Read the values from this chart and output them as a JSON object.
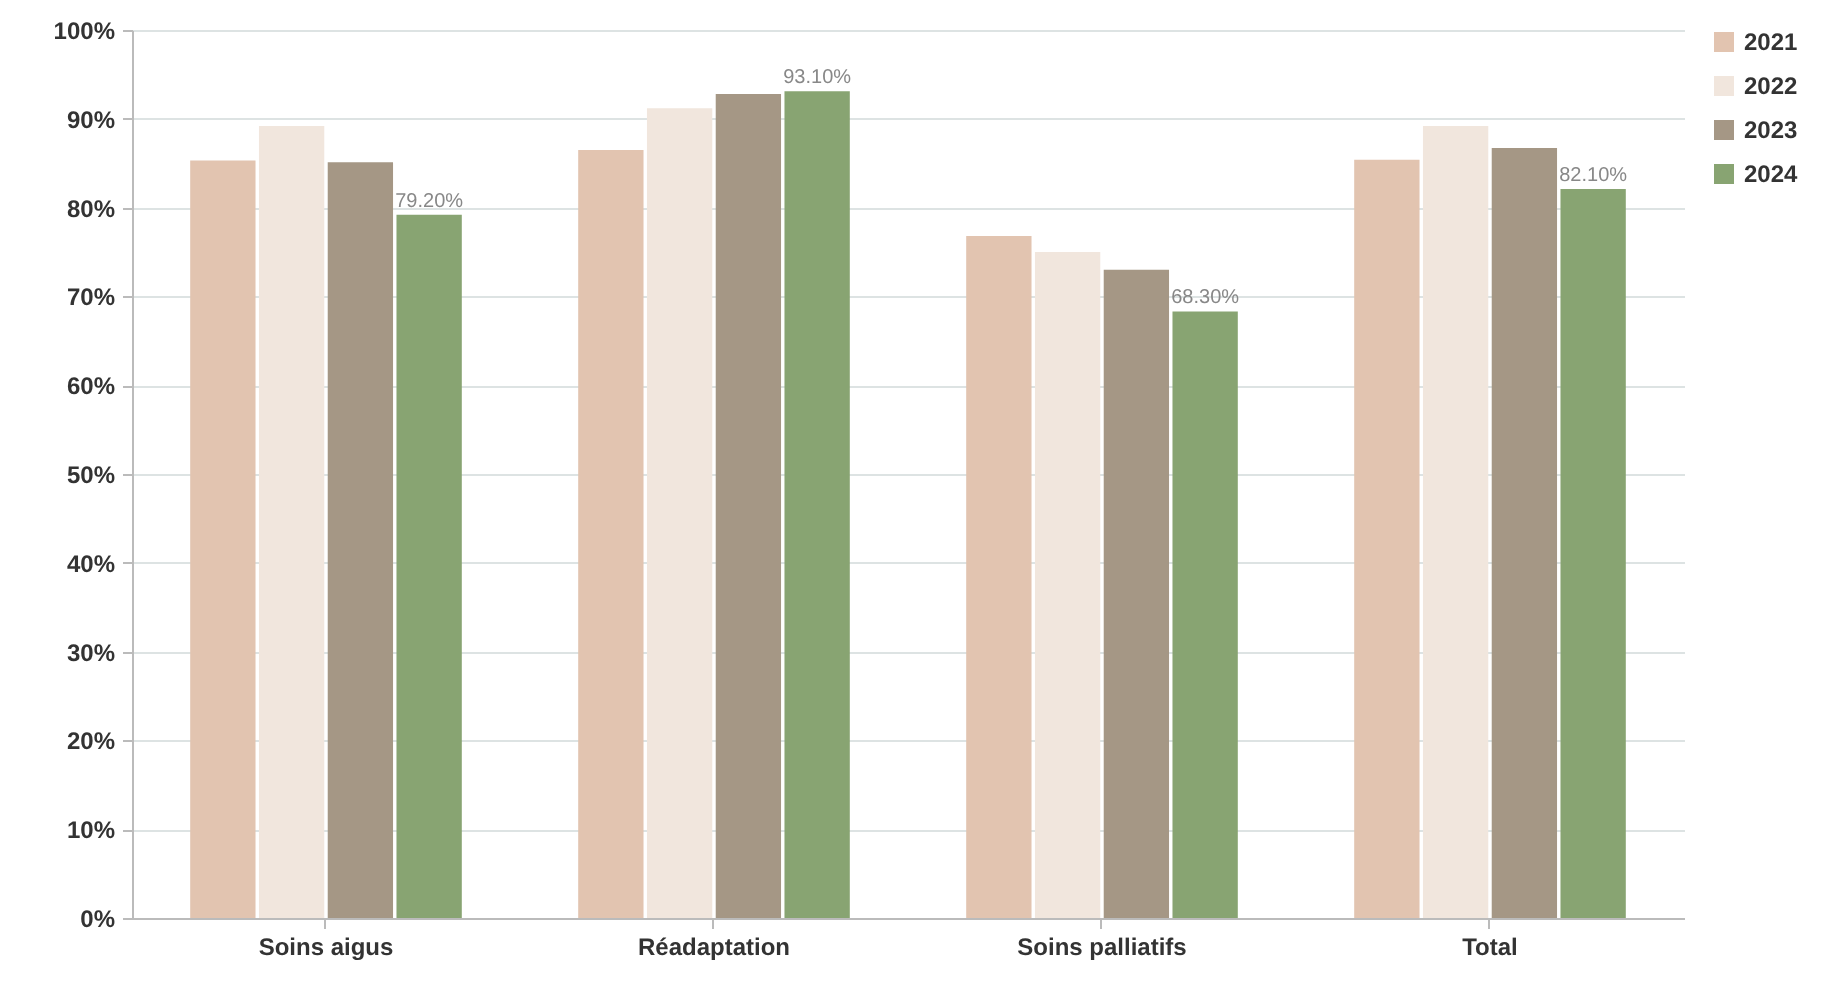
{
  "chart_data": {
    "type": "bar",
    "categories": [
      "Soins aigus",
      "Réadaptation",
      "Soins palliatifs",
      "Total"
    ],
    "series": [
      {
        "name": "2021",
        "color": "#e2c4b0",
        "values": [
          85.3,
          86.5,
          76.8,
          85.4
        ]
      },
      {
        "name": "2022",
        "color": "#f1e6dd",
        "values": [
          89.2,
          91.2,
          75.0,
          89.2
        ]
      },
      {
        "name": "2023",
        "color": "#a59785",
        "values": [
          85.1,
          92.8,
          73.0,
          86.7
        ]
      },
      {
        "name": "2024",
        "color": "#88a472",
        "values": [
          79.2,
          93.1,
          68.3,
          82.1
        ],
        "value_labels": [
          "79.20%",
          "93.10%",
          "68.30%",
          "82.10%"
        ]
      }
    ],
    "ylim": [
      0,
      100
    ],
    "yticks": [
      {
        "value": 0,
        "label": "0%"
      },
      {
        "value": 10,
        "label": "10%"
      },
      {
        "value": 20,
        "label": "20%"
      },
      {
        "value": 30,
        "label": "30%"
      },
      {
        "value": 40,
        "label": "40%"
      },
      {
        "value": 50,
        "label": "50%"
      },
      {
        "value": 60,
        "label": "60%"
      },
      {
        "value": 70,
        "label": "70%"
      },
      {
        "value": 80,
        "label": "80%"
      },
      {
        "value": 90,
        "label": "90%"
      },
      {
        "value": 100,
        "label": "100%"
      }
    ],
    "grid": "y",
    "legend": "right"
  }
}
